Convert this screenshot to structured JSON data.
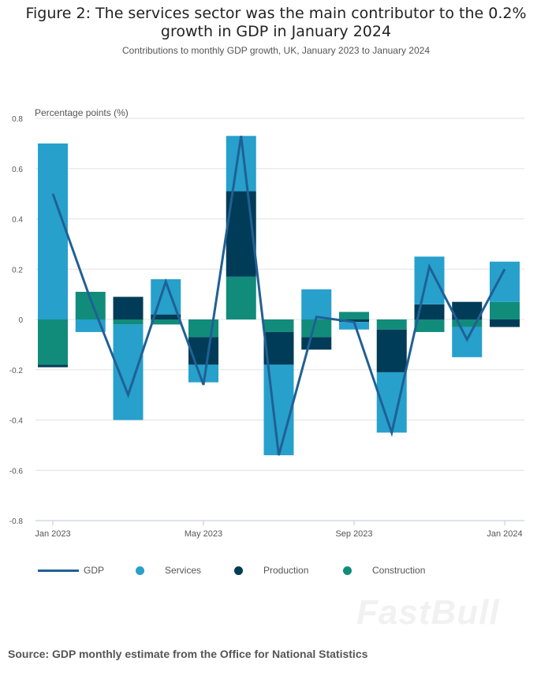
{
  "chart_data": {
    "type": "bar",
    "stacked": true,
    "title": "Figure 2: The services sector was the main contributor to the 0.2% growth in GDP in January 2024",
    "subtitle": "Contributions to monthly GDP growth, UK, January 2023 to January 2024",
    "ylabel": "Percentage points (%)",
    "ylim": [
      -0.8,
      0.8
    ],
    "yticks": [
      "0.8",
      "0.6",
      "0.4",
      "0.2",
      "0",
      "-0.2",
      "-0.4",
      "-0.6",
      "-0.8"
    ],
    "categories": [
      "Jan 2023",
      "Feb 2023",
      "Mar 2023",
      "Apr 2023",
      "May 2023",
      "Jun 2023",
      "Jul 2023",
      "Aug 2023",
      "Sep 2023",
      "Oct 2023",
      "Nov 2023",
      "Dec 2023",
      "Jan 2024"
    ],
    "xtick_labels": {
      "0": "Jan 2023",
      "4": "May 2023",
      "8": "Sep 2023",
      "12": "Jan 2024"
    },
    "grid": true,
    "legend_position": "bottom-left",
    "series": [
      {
        "name": "Services",
        "type": "bar",
        "color": "#27a0cc",
        "values": [
          0.7,
          -0.05,
          -0.38,
          0.14,
          -0.07,
          0.22,
          -0.36,
          0.12,
          -0.03,
          -0.24,
          0.19,
          -0.12,
          0.16
        ]
      },
      {
        "name": "Production",
        "type": "bar",
        "color": "#003c57",
        "values": [
          -0.01,
          0.0,
          0.09,
          0.02,
          -0.11,
          0.34,
          -0.13,
          -0.05,
          -0.01,
          -0.17,
          0.06,
          0.07,
          -0.03
        ]
      },
      {
        "name": "Construction",
        "type": "bar",
        "color": "#118c7b",
        "values": [
          -0.18,
          0.11,
          -0.02,
          -0.02,
          -0.07,
          0.17,
          -0.05,
          -0.07,
          0.03,
          -0.04,
          -0.05,
          -0.03,
          0.07
        ]
      },
      {
        "name": "GDP",
        "type": "line",
        "color": "#206095",
        "values": [
          0.5,
          0.08,
          -0.3,
          0.15,
          -0.26,
          0.73,
          -0.54,
          0.01,
          -0.01,
          -0.45,
          0.21,
          -0.08,
          0.2
        ]
      }
    ]
  },
  "source": "Source: GDP monthly estimate from the Office for National Statistics",
  "watermark": "FastBull"
}
